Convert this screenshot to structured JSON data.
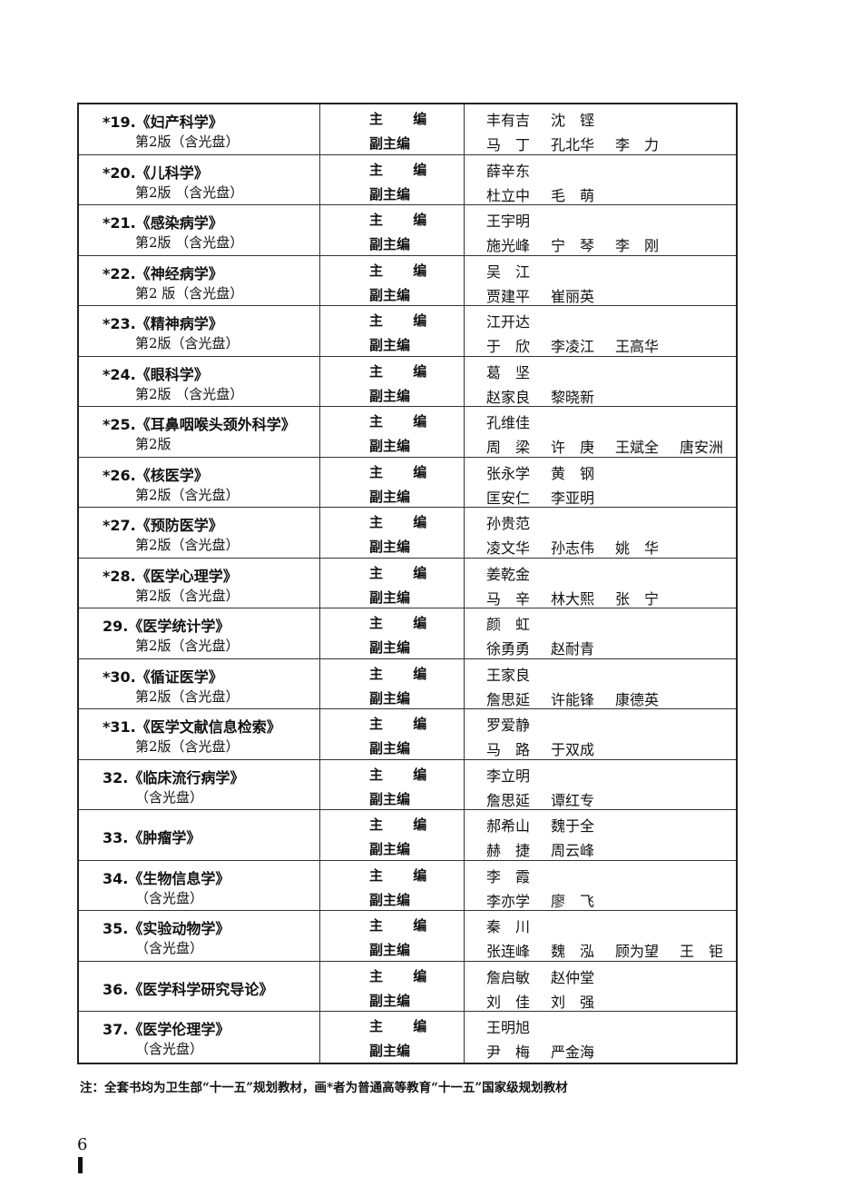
{
  "roles": {
    "chief": "主 编",
    "deputy": "副主编"
  },
  "books": [
    {
      "title": "*19.《妇产科学》",
      "edition": "第2版（含光盘）",
      "chief": [
        "丰有吉",
        "沈　铿"
      ],
      "deputy": [
        "马　丁",
        "孔北华",
        "李　力"
      ]
    },
    {
      "title": "*20.《儿科学》",
      "edition": "第2版 （含光盘）",
      "chief": [
        "薛辛东"
      ],
      "deputy": [
        "杜立中",
        "毛　萌"
      ]
    },
    {
      "title": "*21.《感染病学》",
      "edition": "第2版 （含光盘）",
      "chief": [
        "王宇明"
      ],
      "deputy": [
        "施光峰",
        "宁　琴",
        "李　刚"
      ]
    },
    {
      "title": "*22.《神经病学》",
      "edition": "第2 版（含光盘）",
      "chief": [
        "吴　江"
      ],
      "deputy": [
        "贾建平",
        "崔丽英"
      ]
    },
    {
      "title": "*23.《精神病学》",
      "edition": "第2版（含光盘）",
      "chief": [
        "江开达"
      ],
      "deputy": [
        "于　欣",
        "李凌江",
        "王高华"
      ]
    },
    {
      "title": "*24.《眼科学》",
      "edition": "第2版 （含光盘）",
      "chief": [
        "葛　坚"
      ],
      "deputy": [
        "赵家良",
        "黎晓新"
      ]
    },
    {
      "title": "*25.《耳鼻咽喉头颈外科学》",
      "edition": "第2版",
      "chief": [
        "孔维佳"
      ],
      "deputy": [
        "周　梁",
        "许　庚",
        "王斌全",
        "唐安洲"
      ]
    },
    {
      "title": "*26.《核医学》",
      "edition": "第2版（含光盘）",
      "chief": [
        "张永学",
        "黄　钢"
      ],
      "deputy": [
        "匡安仁",
        "李亚明"
      ]
    },
    {
      "title": "*27.《预防医学》",
      "edition": "第2版（含光盘）",
      "chief": [
        "孙贵范"
      ],
      "deputy": [
        "凌文华",
        "孙志伟",
        "姚　华"
      ]
    },
    {
      "title": "*28.《医学心理学》",
      "edition": "第2版（含光盘）",
      "chief": [
        "姜乾金"
      ],
      "deputy": [
        "马　辛",
        "林大熙",
        "张　宁"
      ]
    },
    {
      "title": "29.《医学统计学》",
      "edition": "第2版（含光盘）",
      "chief": [
        "颜　虹"
      ],
      "deputy": [
        "徐勇勇",
        "赵耐青"
      ]
    },
    {
      "title": "*30.《循证医学》",
      "edition": "第2版（含光盘）",
      "chief": [
        "王家良"
      ],
      "deputy": [
        "詹思延",
        "许能锋",
        "康德英"
      ]
    },
    {
      "title": "*31.《医学文献信息检索》",
      "edition": "第2版（含光盘）",
      "chief": [
        "罗爱静"
      ],
      "deputy": [
        "马　路",
        "于双成"
      ]
    },
    {
      "title": "32.《临床流行病学》",
      "edition": "（含光盘）",
      "chief": [
        "李立明"
      ],
      "deputy": [
        "詹思延",
        "谭红专"
      ]
    },
    {
      "title": "33.《肿瘤学》",
      "edition": "",
      "chief": [
        "郝希山",
        "魏于全"
      ],
      "deputy": [
        "赫　捷",
        "周云峰"
      ]
    },
    {
      "title": "34.《生物信息学》",
      "edition": "（含光盘）",
      "chief": [
        "李　霞"
      ],
      "deputy": [
        "李亦学",
        "廖　飞"
      ]
    },
    {
      "title": "35.《实验动物学》",
      "edition": "（含光盘）",
      "chief": [
        "秦　川"
      ],
      "deputy": [
        "张连峰",
        "魏　泓",
        "顾为望",
        "王　钜"
      ]
    },
    {
      "title": "36.《医学科学研究导论》",
      "edition": "",
      "chief": [
        "詹启敏",
        "赵仲堂"
      ],
      "deputy": [
        "刘　佳",
        "刘　强"
      ]
    },
    {
      "title": "37.《医学伦理学》",
      "edition": "（含光盘）",
      "chief": [
        "王明旭"
      ],
      "deputy": [
        "尹　梅",
        "严金海"
      ]
    }
  ],
  "note": "注：全套书均为卫生部“十一五”规划教材，画*者为普通高等教育“十一五”国家级规划教材",
  "page_number": "6"
}
